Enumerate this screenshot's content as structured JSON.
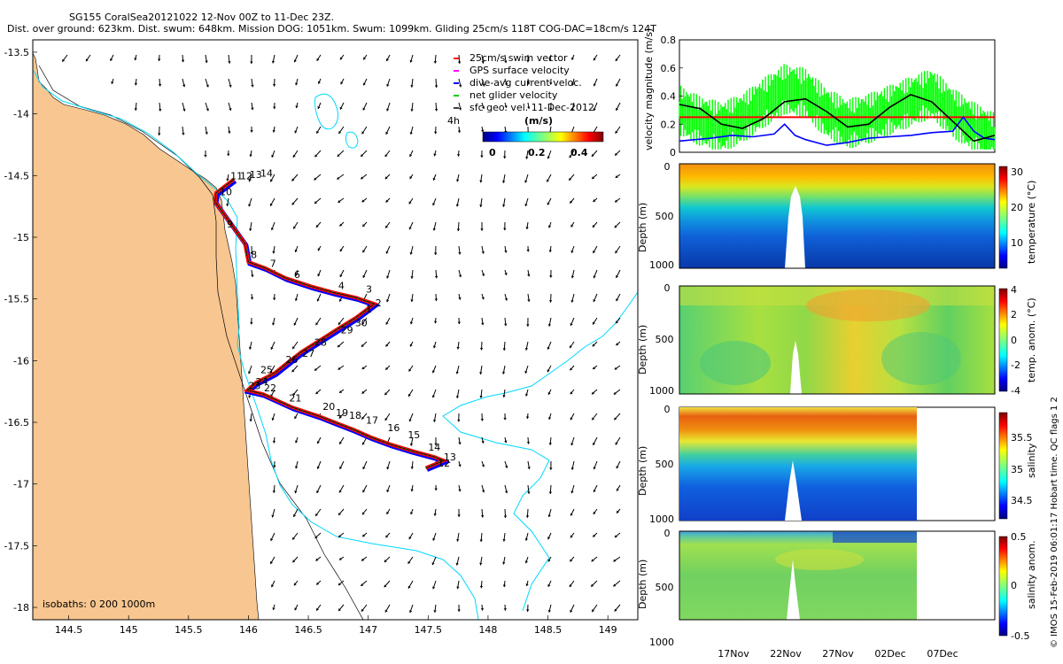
{
  "header": {
    "line1": "SG155 CoralSea20121022 12-Nov 00Z to 11-Dec 23Z.",
    "line2": "Dist. over ground: 623km. Dist. swum: 648km. Mission DOG: 1051km. Swum: 1099km. Gliding 25cm/s 118T COG-DAC=18cm/s 124T"
  },
  "legend": {
    "items": [
      {
        "label": "25cm/s swim vector",
        "color": "#ff0000"
      },
      {
        "label": "GPS surface velocity",
        "color": "#ff00ff"
      },
      {
        "label": "dive-avg current veloc.",
        "color": "#0000ff"
      },
      {
        "label": "net glider velocity",
        "color": "#00cc00"
      },
      {
        "label": "sfc geo. vel. 11-Dec-2012",
        "color": "#000000"
      }
    ],
    "time_label": "4h",
    "colorbar_title": "(m/s)",
    "colorbar_ticks": [
      "0",
      "0.2",
      "0.4"
    ]
  },
  "isobath_note": "isobaths: 0   200  1000m",
  "side_note": "© IMOS 15-Feb-2019 06:01:17 Hobart time. QC flags 1  2",
  "colors": {
    "land": "#f8c690",
    "isobath_200": "#00d8ff",
    "track_red": "#ff0000",
    "track_blue": "#0000ff",
    "track_green": "#00dd00",
    "net_green": "#00ff00",
    "black": "#000000"
  },
  "chart_data": [
    {
      "type": "line",
      "name": "glider track map",
      "xlim": [
        144.2,
        149.25
      ],
      "ylim": [
        -18.1,
        -13.4
      ],
      "x_ticks": [
        "144.5",
        "145",
        "145.5",
        "146",
        "146.5",
        "147",
        "147.5",
        "148",
        "148.5",
        "149"
      ],
      "y_ticks": [
        "-13.5",
        "-14",
        "-14.5",
        "-15",
        "-15.5",
        "-16",
        "-16.5",
        "-17",
        "-17.5",
        "-18"
      ],
      "track": {
        "lon": [
          145.88,
          145.73,
          145.72,
          145.97,
          146.0,
          146.14,
          146.31,
          146.53,
          146.72,
          146.9,
          147.05,
          146.9,
          146.75,
          146.62,
          146.44,
          146.31,
          146.22,
          146.06,
          145.99,
          146.12,
          146.37,
          146.59,
          146.72,
          146.88,
          147.02,
          147.19,
          147.36,
          147.55,
          147.63,
          147.48
        ],
        "lat": [
          -14.53,
          -14.64,
          -14.71,
          -15.05,
          -15.2,
          -15.25,
          -15.33,
          -15.4,
          -15.45,
          -15.49,
          -15.54,
          -15.65,
          -15.74,
          -15.82,
          -15.93,
          -16.03,
          -16.1,
          -16.18,
          -16.24,
          -16.27,
          -16.38,
          -16.45,
          -16.5,
          -16.56,
          -16.62,
          -16.68,
          -16.73,
          -16.78,
          -16.81,
          -16.87
        ]
      },
      "labels": [
        {
          "text": "10",
          "lon": 145.76,
          "lat": -14.66
        },
        {
          "text": "9",
          "lon": 145.82,
          "lat": -14.92
        },
        {
          "text": "8",
          "lon": 146.02,
          "lat": -15.17
        },
        {
          "text": "7",
          "lon": 146.18,
          "lat": -15.24
        },
        {
          "text": "6",
          "lon": 146.38,
          "lat": -15.33
        },
        {
          "text": "4",
          "lon": 146.75,
          "lat": -15.42
        },
        {
          "text": "3",
          "lon": 146.98,
          "lat": -15.45
        },
        {
          "text": "2",
          "lon": 147.06,
          "lat": -15.56
        },
        {
          "text": "1",
          "lon": 146.98,
          "lat": -15.61
        },
        {
          "text": "30",
          "lon": 146.89,
          "lat": -15.72
        },
        {
          "text": "29",
          "lon": 146.77,
          "lat": -15.78
        },
        {
          "text": "28",
          "lon": 146.55,
          "lat": -15.88
        },
        {
          "text": "27",
          "lon": 146.45,
          "lat": -15.97
        },
        {
          "text": "26",
          "lon": 146.31,
          "lat": -16.02
        },
        {
          "text": "25",
          "lon": 146.1,
          "lat": -16.1
        },
        {
          "text": "24",
          "lon": 146.06,
          "lat": -16.2
        },
        {
          "text": "23",
          "lon": 146.0,
          "lat": -16.23
        },
        {
          "text": "22",
          "lon": 146.13,
          "lat": -16.25
        },
        {
          "text": "21",
          "lon": 146.34,
          "lat": -16.33
        },
        {
          "text": "20",
          "lon": 146.62,
          "lat": -16.4
        },
        {
          "text": "19",
          "lon": 146.73,
          "lat": -16.45
        },
        {
          "text": "18",
          "lon": 146.84,
          "lat": -16.47
        },
        {
          "text": "17",
          "lon": 146.98,
          "lat": -16.51
        },
        {
          "text": "16",
          "lon": 147.16,
          "lat": -16.57
        },
        {
          "text": "15",
          "lon": 147.33,
          "lat": -16.63
        },
        {
          "text": "14",
          "lon": 147.5,
          "lat": -16.73
        },
        {
          "text": "13",
          "lon": 147.63,
          "lat": -16.81
        },
        {
          "text": "12",
          "lon": 147.58,
          "lat": -16.86
        },
        {
          "text": "11",
          "lon": 145.85,
          "lat": -14.53
        },
        {
          "text": "12",
          "lon": 145.93,
          "lat": -14.53
        },
        {
          "text": "13",
          "lon": 146.01,
          "lat": -14.52
        },
        {
          "text": "14",
          "lon": 146.1,
          "lat": -14.51
        }
      ]
    },
    {
      "type": "line",
      "name": "velocity magnitude",
      "ylabel": "velocity magnitude (m/s)",
      "ylim": [
        0,
        0.8
      ],
      "y_ticks": [
        "0",
        "0.2",
        "0.4",
        "0.6",
        "0.8"
      ],
      "xlim": [
        0,
        30
      ],
      "swim_speed": 0.25,
      "series": [
        {
          "name": "sfc geo. vel.",
          "color": "#000000",
          "x": [
            0,
            2,
            4,
            6,
            8,
            10,
            12,
            14,
            16,
            18,
            20,
            22,
            24,
            26,
            28,
            30
          ],
          "values": [
            0.34,
            0.31,
            0.2,
            0.17,
            0.24,
            0.36,
            0.38,
            0.29,
            0.18,
            0.2,
            0.32,
            0.41,
            0.36,
            0.22,
            0.08,
            0.12
          ]
        },
        {
          "name": "dive-avg current veloc.",
          "color": "#0000ff",
          "x": [
            0,
            3,
            5,
            7,
            9,
            10,
            11,
            12,
            14,
            16,
            18,
            20,
            22,
            24,
            26,
            27,
            28,
            29,
            30
          ],
          "values": [
            0.08,
            0.1,
            0.12,
            0.11,
            0.13,
            0.2,
            0.12,
            0.09,
            0.05,
            0.07,
            0.1,
            0.11,
            0.12,
            0.14,
            0.15,
            0.25,
            0.15,
            0.1,
            0.09
          ]
        },
        {
          "name": "net glider velocity",
          "color": "#00ff00",
          "x": [
            0,
            2,
            4,
            6,
            8,
            10,
            12,
            14,
            16,
            18,
            20,
            22,
            24,
            26,
            28,
            30
          ],
          "values": [
            0.3,
            0.22,
            0.18,
            0.24,
            0.35,
            0.45,
            0.42,
            0.28,
            0.2,
            0.24,
            0.3,
            0.36,
            0.42,
            0.28,
            0.18,
            0.1
          ]
        }
      ]
    },
    {
      "type": "heatmap",
      "name": "temperature",
      "ylabel": "Depth (m)",
      "y_ticks": [
        "0",
        "500",
        "1000"
      ],
      "colorbar_label": "temperature (°C)",
      "colorbar_ticks": [
        "30",
        "20",
        "10"
      ],
      "clim": [
        4,
        31
      ]
    },
    {
      "type": "heatmap",
      "name": "temperature anomaly",
      "ylabel": "Depth (m)",
      "y_ticks": [
        "0",
        "500",
        "1000"
      ],
      "colorbar_label": "temp. anom. (°C)",
      "colorbar_ticks": [
        "4",
        "2",
        "0",
        "-2",
        "-4"
      ],
      "clim": [
        -4,
        4
      ]
    },
    {
      "type": "heatmap",
      "name": "salinity",
      "ylabel": "Depth (m)",
      "y_ticks": [
        "0",
        "500",
        "1000"
      ],
      "colorbar_label": "salinity",
      "colorbar_ticks": [
        "35.5",
        "35",
        "34.5"
      ],
      "clim": [
        34.3,
        35.8
      ]
    },
    {
      "type": "heatmap",
      "name": "salinity anomaly",
      "ylabel": "Depth (m)",
      "y_ticks": [
        "0",
        "500",
        "1000"
      ],
      "colorbar_label": "salinity anom.",
      "colorbar_ticks": [
        "0.5",
        "0",
        "-0.5"
      ],
      "clim": [
        -0.5,
        0.5
      ],
      "x_ticks": [
        "17Nov",
        "22Nov",
        "27Nov",
        "02Dec",
        "07Dec"
      ]
    }
  ]
}
